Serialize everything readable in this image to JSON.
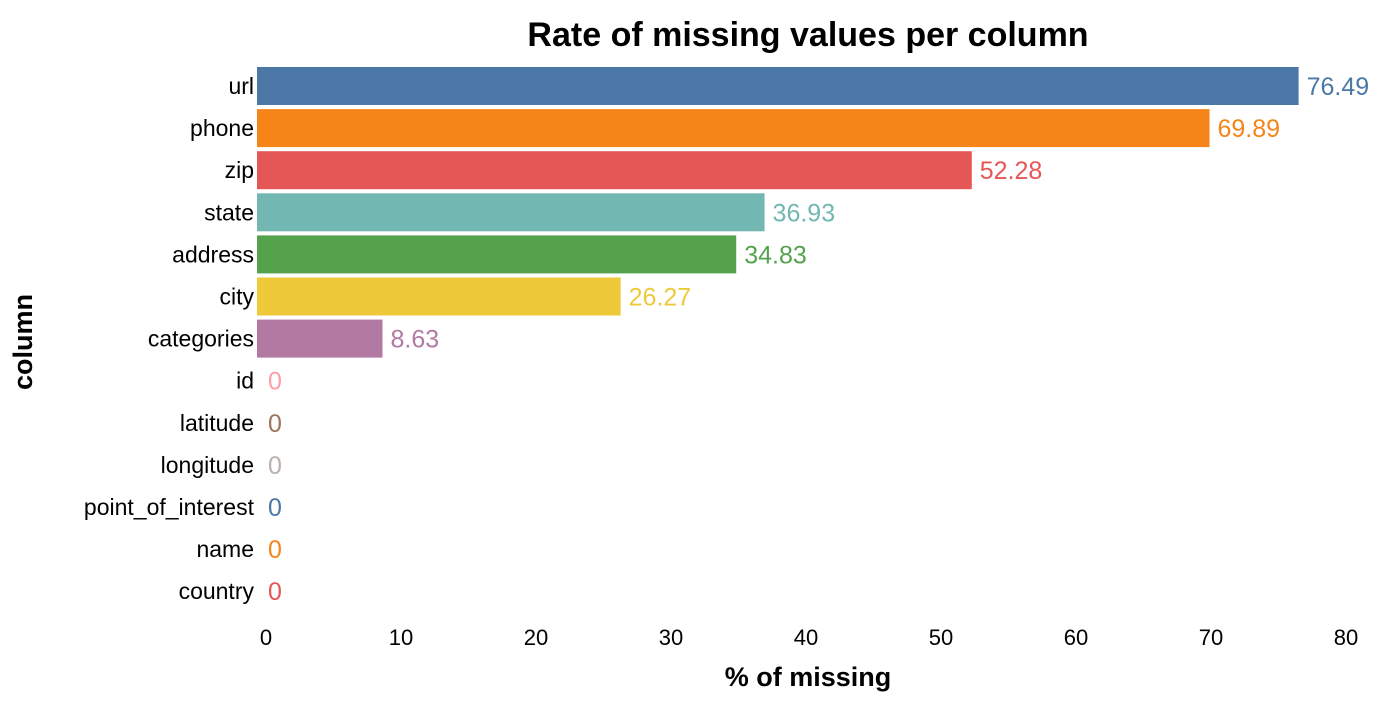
{
  "chart_data": {
    "type": "bar",
    "orientation": "horizontal",
    "title": "Rate of missing values per column",
    "xlabel": "% of missing",
    "ylabel": "column",
    "xlim": [
      0,
      80
    ],
    "xticks": [
      0,
      10,
      20,
      30,
      40,
      50,
      60,
      70,
      80
    ],
    "grid": false,
    "legend": "none",
    "categories": [
      "url",
      "phone",
      "zip",
      "state",
      "address",
      "city",
      "categories",
      "id",
      "latitude",
      "longitude",
      "point_of_interest",
      "name",
      "country"
    ],
    "values": [
      76.49,
      69.89,
      52.28,
      36.93,
      34.83,
      26.27,
      8.63,
      0,
      0,
      0,
      0,
      0,
      0
    ],
    "value_labels": [
      "76.49",
      "69.89",
      "52.28",
      "36.93",
      "34.83",
      "26.27",
      "8.63",
      "0",
      "0",
      "0",
      "0",
      "0",
      "0"
    ],
    "colors": [
      "#4C78A8",
      "#F58518",
      "#E45756",
      "#72B7B2",
      "#54A24B",
      "#EECA3B",
      "#B279A2",
      "#FF9DA6",
      "#9D755D",
      "#BAB0AC",
      "#4C78A8",
      "#F58518",
      "#E45756"
    ]
  }
}
